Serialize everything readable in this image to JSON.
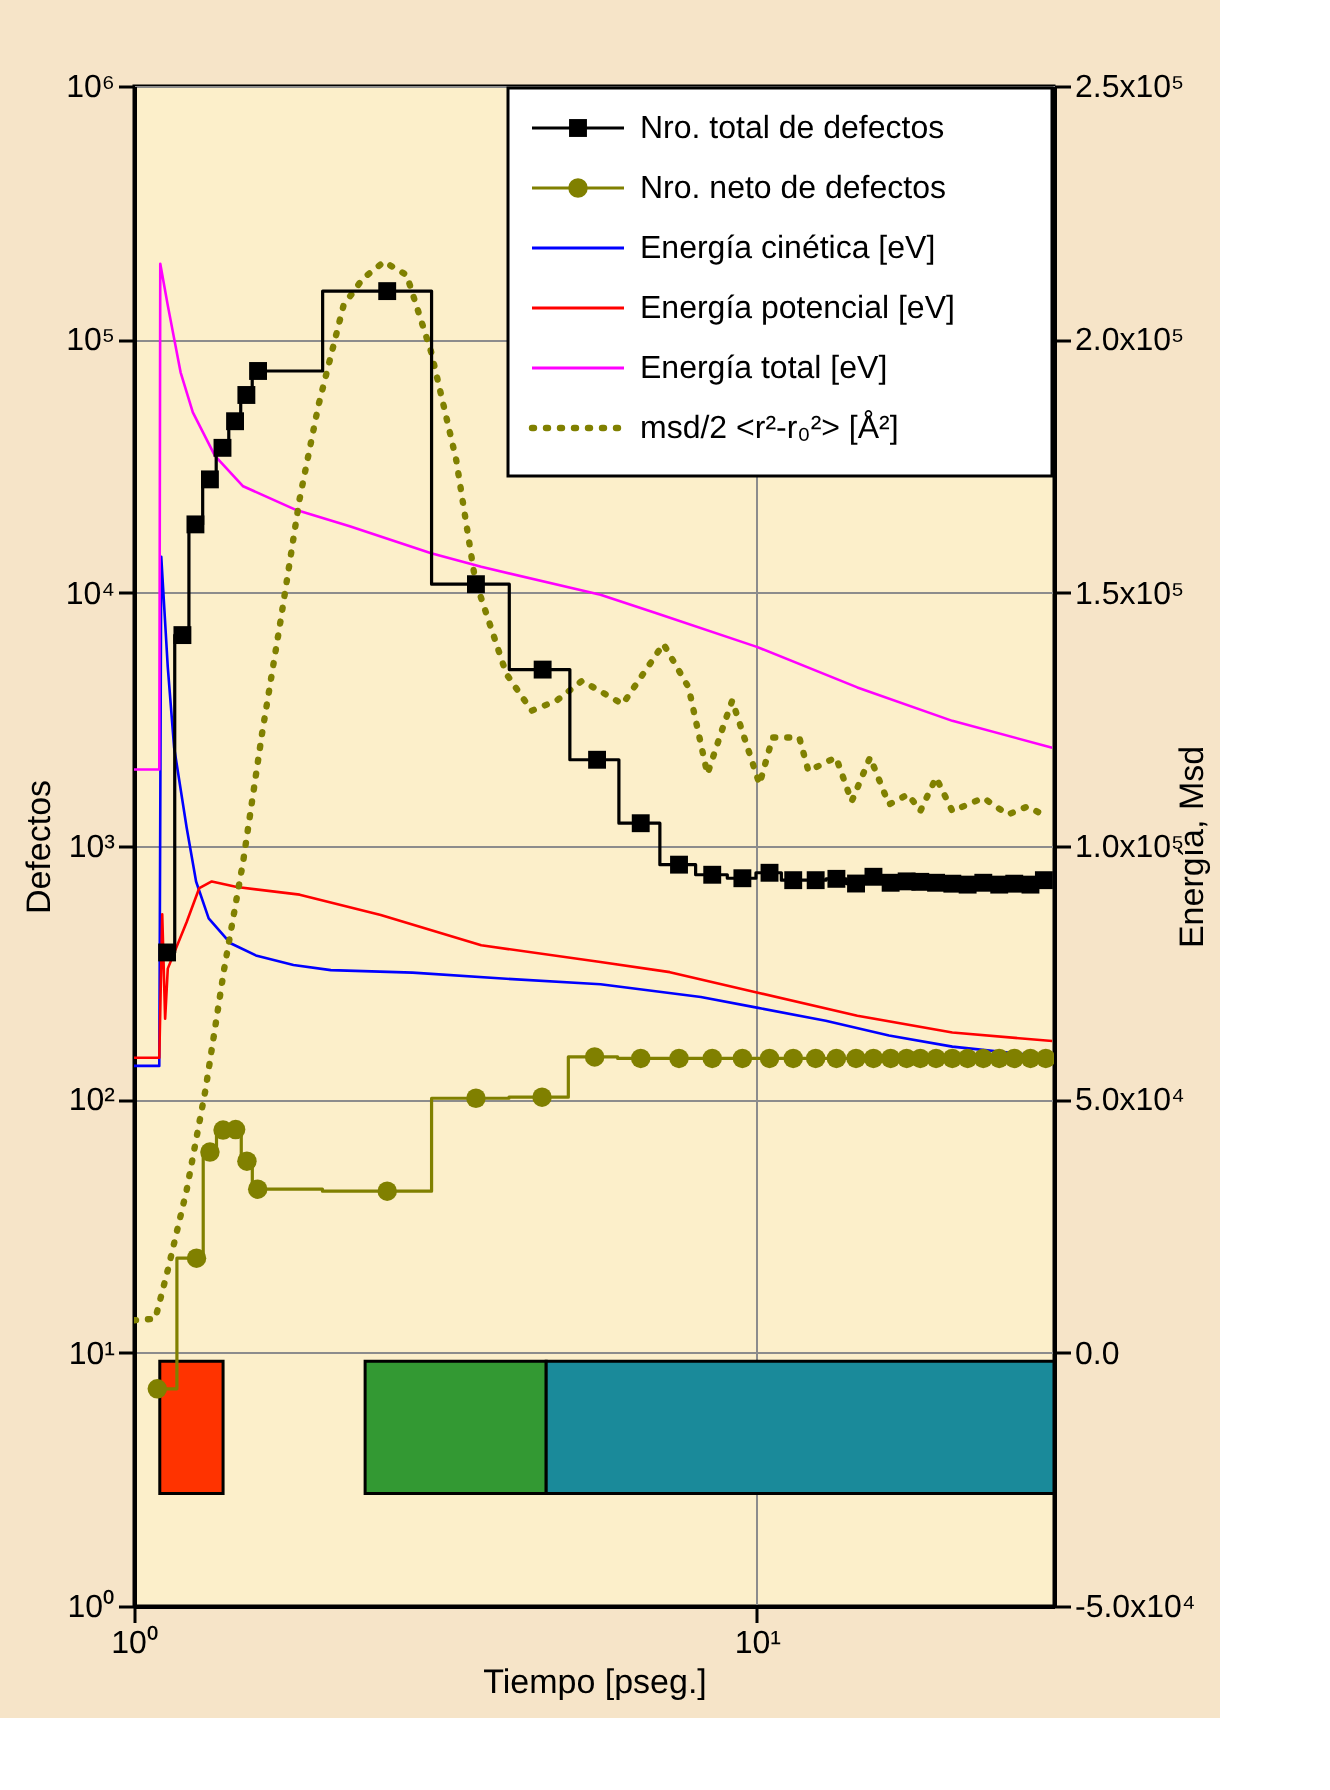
{
  "chart_data": {
    "type": "line",
    "xlabel": "Tiempo [pseg.]",
    "ylabel": "Defectos",
    "y2label": "Energía, Msd",
    "log": "xy",
    "grid": true,
    "legend": "top right",
    "xlim": [
      1,
      30
    ],
    "xticks": [
      {
        "value": 1,
        "label": "10⁰"
      },
      {
        "value": 10,
        "label": "10¹"
      }
    ],
    "ylim": [
      1,
      1000000
    ],
    "yticks": [
      {
        "value": 1,
        "label": "10⁰"
      },
      {
        "value": 10,
        "label": "10¹"
      },
      {
        "value": 100,
        "label": "10²"
      },
      {
        "value": 1000,
        "label": "10³"
      },
      {
        "value": 10000,
        "label": "10⁴"
      },
      {
        "value": 100000,
        "label": "10⁵"
      },
      {
        "value": 1000000,
        "label": "10⁶"
      }
    ],
    "y2lim": [
      -50000,
      250000
    ],
    "y2ticks": [
      {
        "value": -50000,
        "label": "-5.0x10⁴"
      },
      {
        "value": 0,
        "label": "0.0"
      },
      {
        "value": 50000,
        "label": "5.0x10⁴"
      },
      {
        "value": 100000,
        "label": "1.0x10⁵"
      },
      {
        "value": 150000,
        "label": "1.5x10⁵"
      },
      {
        "value": 200000,
        "label": "2.0x10⁵"
      },
      {
        "value": 250000,
        "label": "2.5x10⁵"
      }
    ],
    "bands": [
      {
        "axis": "x",
        "from": 1.1,
        "to": 1.39,
        "color": "#ff3300"
      },
      {
        "axis": "x",
        "from": 2.35,
        "to": 4.59,
        "color": "#339933"
      },
      {
        "axis": "x",
        "from": 4.59,
        "to": 30,
        "color": "#1a8a9a"
      }
    ],
    "series": [
      {
        "name": "Nro. total de defectos",
        "type": "step",
        "marker": "square",
        "color": "#000000",
        "x": [
          1.13,
          1.196,
          1.255,
          1.324,
          1.387,
          1.453,
          1.515,
          1.582,
          2.55,
          3.54,
          4.53,
          5.54,
          6.51,
          7.5,
          8.48,
          9.48,
          10.48,
          11.44,
          12.43,
          13.42,
          14.43,
          15.39,
          16.4,
          17.4,
          18.3,
          19.4,
          20.6,
          21.8,
          23.1,
          24.5,
          25.9,
          27.5,
          28.9
        ],
        "values": [
          380,
          6800,
          18600,
          28000,
          37300,
          47500,
          60300,
          75000,
          155000,
          10800,
          4970,
          2190,
          1230,
          844,
          770,
          746,
          784,
          733,
          733,
          742,
          711,
          756,
          716,
          725,
          722,
          716,
          710,
          704,
          716,
          704,
          710,
          704,
          733
        ]
      },
      {
        "name": "Nro. neto de defectos",
        "type": "step",
        "marker": "circle",
        "color": "#808000",
        "x": [
          1.09,
          1.26,
          1.324,
          1.39,
          1.456,
          1.518,
          1.58,
          2.55,
          3.54,
          4.52,
          5.49,
          6.51,
          7.5,
          8.48,
          9.48,
          10.48,
          11.44,
          12.43,
          13.42,
          14.43,
          15.39,
          16.4,
          17.4,
          18.3,
          19.4,
          20.6,
          21.8,
          23.1,
          24.5,
          25.9,
          27.5,
          29.1
        ],
        "values": [
          7.2,
          23.6,
          61.9,
          75.6,
          76,
          57,
          44.2,
          43.4,
          101,
          102,
          147,
          145,
          145,
          145,
          145,
          145,
          145,
          145,
          145,
          145,
          145,
          145,
          145,
          145,
          145,
          145,
          145,
          145,
          145,
          145,
          145,
          145
        ]
      },
      {
        "name": "Energía cinética [eV]",
        "axis": "y2",
        "color": "#0000ff",
        "x": [
          1,
          1.098,
          1.106,
          1.133,
          1.16,
          1.215,
          1.258,
          1.318,
          1.429,
          1.569,
          1.803,
          2.07,
          2.8,
          3.96,
          5.61,
          8.13,
          10.0,
          12.9,
          16.3,
          20.6,
          29.8
        ],
        "values": [
          56600,
          56600,
          157100,
          135300,
          119400,
          103600,
          93000,
          85700,
          80800,
          78400,
          76500,
          75500,
          75000,
          73800,
          72700,
          70200,
          68100,
          65500,
          62600,
          60400,
          58300
        ]
      },
      {
        "name": "Energía potencial [eV]",
        "axis": "y2",
        "color": "#ff0000",
        "x": [
          1,
          1.098,
          1.11,
          1.122,
          1.133,
          1.215,
          1.273,
          1.333,
          1.463,
          1.845,
          2.49,
          3.61,
          5.61,
          7.25,
          10.0,
          14.5,
          20.6,
          29.8
        ],
        "values": [
          58200,
          58200,
          86500,
          65900,
          75800,
          85000,
          91700,
          93000,
          91900,
          90400,
          86400,
          80400,
          77100,
          75100,
          71100,
          66500,
          63200,
          61500
        ]
      },
      {
        "name": "Energía total [eV]",
        "axis": "y2",
        "color": "#ff00ff",
        "x": [
          1,
          1.098,
          1.102,
          1.133,
          1.188,
          1.243,
          1.349,
          1.497,
          1.823,
          2.22,
          3.0,
          3.61,
          5.61,
          6.92,
          10.0,
          14.5,
          20.6,
          29.8
        ],
        "values": [
          115100,
          115100,
          214900,
          206700,
          193500,
          185600,
          177000,
          171000,
          166300,
          163100,
          157800,
          155100,
          149600,
          145900,
          139300,
          131300,
          124700,
          119400
        ]
      },
      {
        "name": "msd/2 <r²-r₀²> [Å²]",
        "axis": "y2",
        "line_style": "dotted",
        "color": "#808000",
        "x": [
          1,
          1.082,
          1.133,
          1.215,
          1.303,
          1.396,
          1.497,
          1.605,
          1.72,
          1.844,
          1.977,
          2.17,
          2.33,
          2.52,
          2.74,
          3.0,
          3.29,
          3.53,
          3.96,
          4.35,
          4.77,
          5.24,
          6.09,
          7.08,
          7.77,
          8.33,
          8.82,
          9.13,
          10.1,
          10.6,
          11.7,
          12.1,
          13.4,
          14.2,
          15.2,
          16.3,
          17.5,
          18.3,
          19.4,
          20.6,
          23.1,
          25.3,
          27.2,
          29.1
        ],
        "values": [
          6400,
          6700,
          16300,
          32100,
          52000,
          75800,
          96900,
          122100,
          144600,
          168400,
          186900,
          206700,
          212000,
          215300,
          212700,
          197500,
          176300,
          152500,
          134000,
          126700,
          128700,
          132600,
          128000,
          139900,
          131300,
          114200,
          123400,
          128700,
          112200,
          121400,
          121400,
          114800,
          117500,
          108800,
          117500,
          108200,
          110200,
          106900,
          113500,
          106900,
          109500,
          106200,
          107800,
          105900
        ]
      }
    ]
  }
}
